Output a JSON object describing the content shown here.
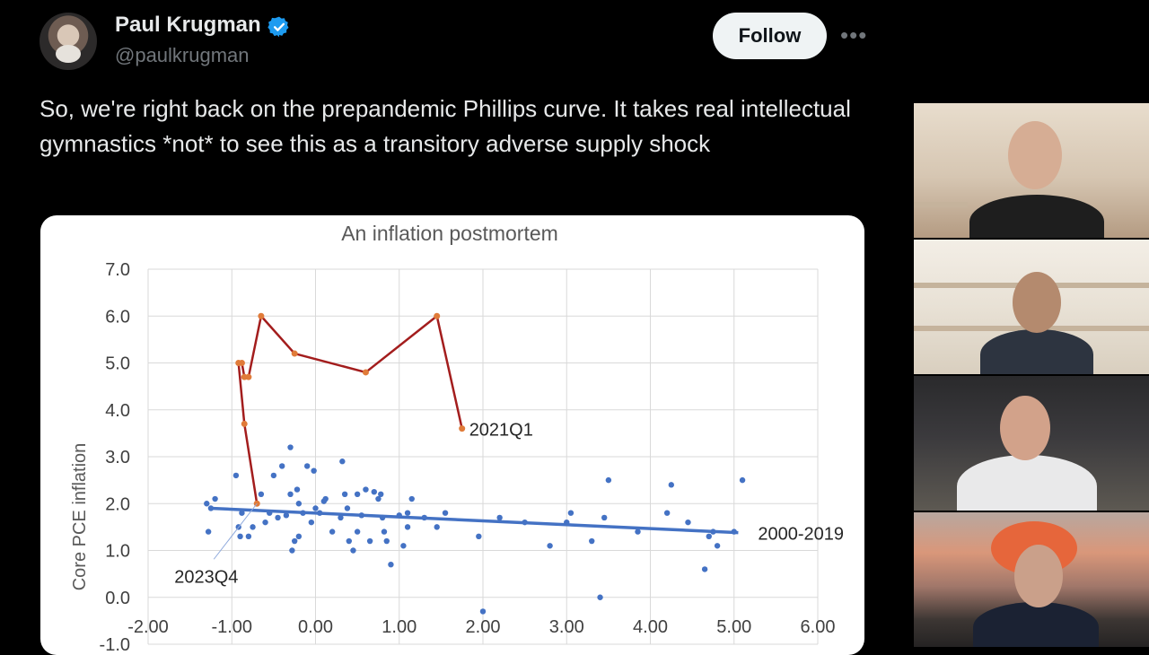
{
  "tweet": {
    "author_name": "Paul Krugman",
    "handle": "@paulkrugman",
    "follow_label": "Follow",
    "more_label": "•••",
    "text": "So, we're right back on the prepandemic Phillips curve. It takes real intellectual gymnastics *not* to see this as a transitory adverse supply shock"
  },
  "icons": {
    "verified": "verified-badge-icon",
    "more": "more-options-icon"
  },
  "colors": {
    "verified_blue": "#1d9bf0",
    "scatter_blue": "#4472c4",
    "path_red": "#a31d1d",
    "point_orange": "#e07b39"
  },
  "chart_data": {
    "type": "scatter",
    "title": "An inflation postmortem",
    "ylabel": "Core PCE inflation",
    "xlabel": "",
    "xlim": [
      -2,
      6
    ],
    "ylim": [
      -1,
      7
    ],
    "x_ticks": [
      "-2.00",
      "-1.00",
      "0.00",
      "1.00",
      "2.00",
      "3.00",
      "4.00",
      "5.00",
      "6.00"
    ],
    "y_ticks": [
      "-1.0",
      "0.0",
      "1.0",
      "2.0",
      "3.0",
      "4.0",
      "5.0",
      "6.0",
      "7.0"
    ],
    "grid": true,
    "series": [
      {
        "name": "2000-2019",
        "kind": "scatter",
        "points": [
          [
            -1.3,
            2.0
          ],
          [
            -1.28,
            1.4
          ],
          [
            -1.25,
            1.9
          ],
          [
            -1.2,
            2.1
          ],
          [
            -0.95,
            2.6
          ],
          [
            -0.92,
            1.5
          ],
          [
            -0.9,
            1.3
          ],
          [
            -0.88,
            1.8
          ],
          [
            -0.8,
            1.3
          ],
          [
            -0.75,
            1.5
          ],
          [
            -0.7,
            2.0
          ],
          [
            -0.65,
            2.2
          ],
          [
            -0.6,
            1.6
          ],
          [
            -0.55,
            1.8
          ],
          [
            -0.5,
            2.6
          ],
          [
            -0.45,
            1.7
          ],
          [
            -0.4,
            2.8
          ],
          [
            -0.35,
            1.75
          ],
          [
            -0.3,
            3.2
          ],
          [
            -0.3,
            2.2
          ],
          [
            -0.28,
            1.0
          ],
          [
            -0.25,
            1.2
          ],
          [
            -0.22,
            2.3
          ],
          [
            -0.2,
            2.0
          ],
          [
            -0.2,
            1.3
          ],
          [
            -0.15,
            1.8
          ],
          [
            -0.1,
            2.8
          ],
          [
            -0.05,
            1.6
          ],
          [
            -0.02,
            2.7
          ],
          [
            0.0,
            1.9
          ],
          [
            0.05,
            1.8
          ],
          [
            0.1,
            2.05
          ],
          [
            0.12,
            2.1
          ],
          [
            0.2,
            1.4
          ],
          [
            0.3,
            1.7
          ],
          [
            0.32,
            2.9
          ],
          [
            0.35,
            2.2
          ],
          [
            0.38,
            1.9
          ],
          [
            0.4,
            1.2
          ],
          [
            0.45,
            1.0
          ],
          [
            0.5,
            1.4
          ],
          [
            0.5,
            2.2
          ],
          [
            0.55,
            1.75
          ],
          [
            0.6,
            2.3
          ],
          [
            0.65,
            1.2
          ],
          [
            0.7,
            2.25
          ],
          [
            0.75,
            2.1
          ],
          [
            0.78,
            2.2
          ],
          [
            0.8,
            1.7
          ],
          [
            0.82,
            1.4
          ],
          [
            0.85,
            1.2
          ],
          [
            0.9,
            0.7
          ],
          [
            1.0,
            1.75
          ],
          [
            1.05,
            1.1
          ],
          [
            1.1,
            1.5
          ],
          [
            1.1,
            1.8
          ],
          [
            1.15,
            2.1
          ],
          [
            1.3,
            1.7
          ],
          [
            1.45,
            1.5
          ],
          [
            1.55,
            1.8
          ],
          [
            1.95,
            1.3
          ],
          [
            2.0,
            -0.3
          ],
          [
            2.2,
            1.7
          ],
          [
            2.5,
            1.6
          ],
          [
            2.8,
            1.1
          ],
          [
            3.0,
            1.6
          ],
          [
            3.05,
            1.8
          ],
          [
            3.3,
            1.2
          ],
          [
            3.4,
            0.0
          ],
          [
            3.45,
            1.7
          ],
          [
            3.5,
            2.5
          ],
          [
            3.85,
            1.4
          ],
          [
            4.2,
            1.8
          ],
          [
            4.25,
            2.4
          ],
          [
            4.45,
            1.6
          ],
          [
            4.65,
            0.6
          ],
          [
            4.7,
            1.3
          ],
          [
            4.75,
            1.4
          ],
          [
            4.8,
            1.1
          ],
          [
            5.0,
            1.4
          ],
          [
            5.1,
            2.5
          ]
        ]
      },
      {
        "name": "trend",
        "kind": "line",
        "points": [
          [
            -1.25,
            1.9
          ],
          [
            5.05,
            1.38
          ]
        ]
      },
      {
        "name": "2021Q1-2023Q4",
        "kind": "line",
        "points": [
          [
            1.75,
            3.6
          ],
          [
            1.45,
            6.0
          ],
          [
            0.6,
            4.8
          ],
          [
            -0.25,
            5.2
          ],
          [
            -0.65,
            6.0
          ],
          [
            -0.8,
            4.7
          ],
          [
            -0.85,
            4.7
          ],
          [
            -0.88,
            5.0
          ],
          [
            -0.92,
            5.0
          ],
          [
            -0.85,
            3.7
          ],
          [
            -0.7,
            2.0
          ]
        ]
      }
    ],
    "annotations": [
      {
        "text": "2021Q1",
        "x": 1.75,
        "y": 3.6
      },
      {
        "text": "2023Q4",
        "x": -0.7,
        "y": 2.0
      },
      {
        "text": "2000-2019",
        "x": 5.05,
        "y": 1.38
      }
    ]
  }
}
